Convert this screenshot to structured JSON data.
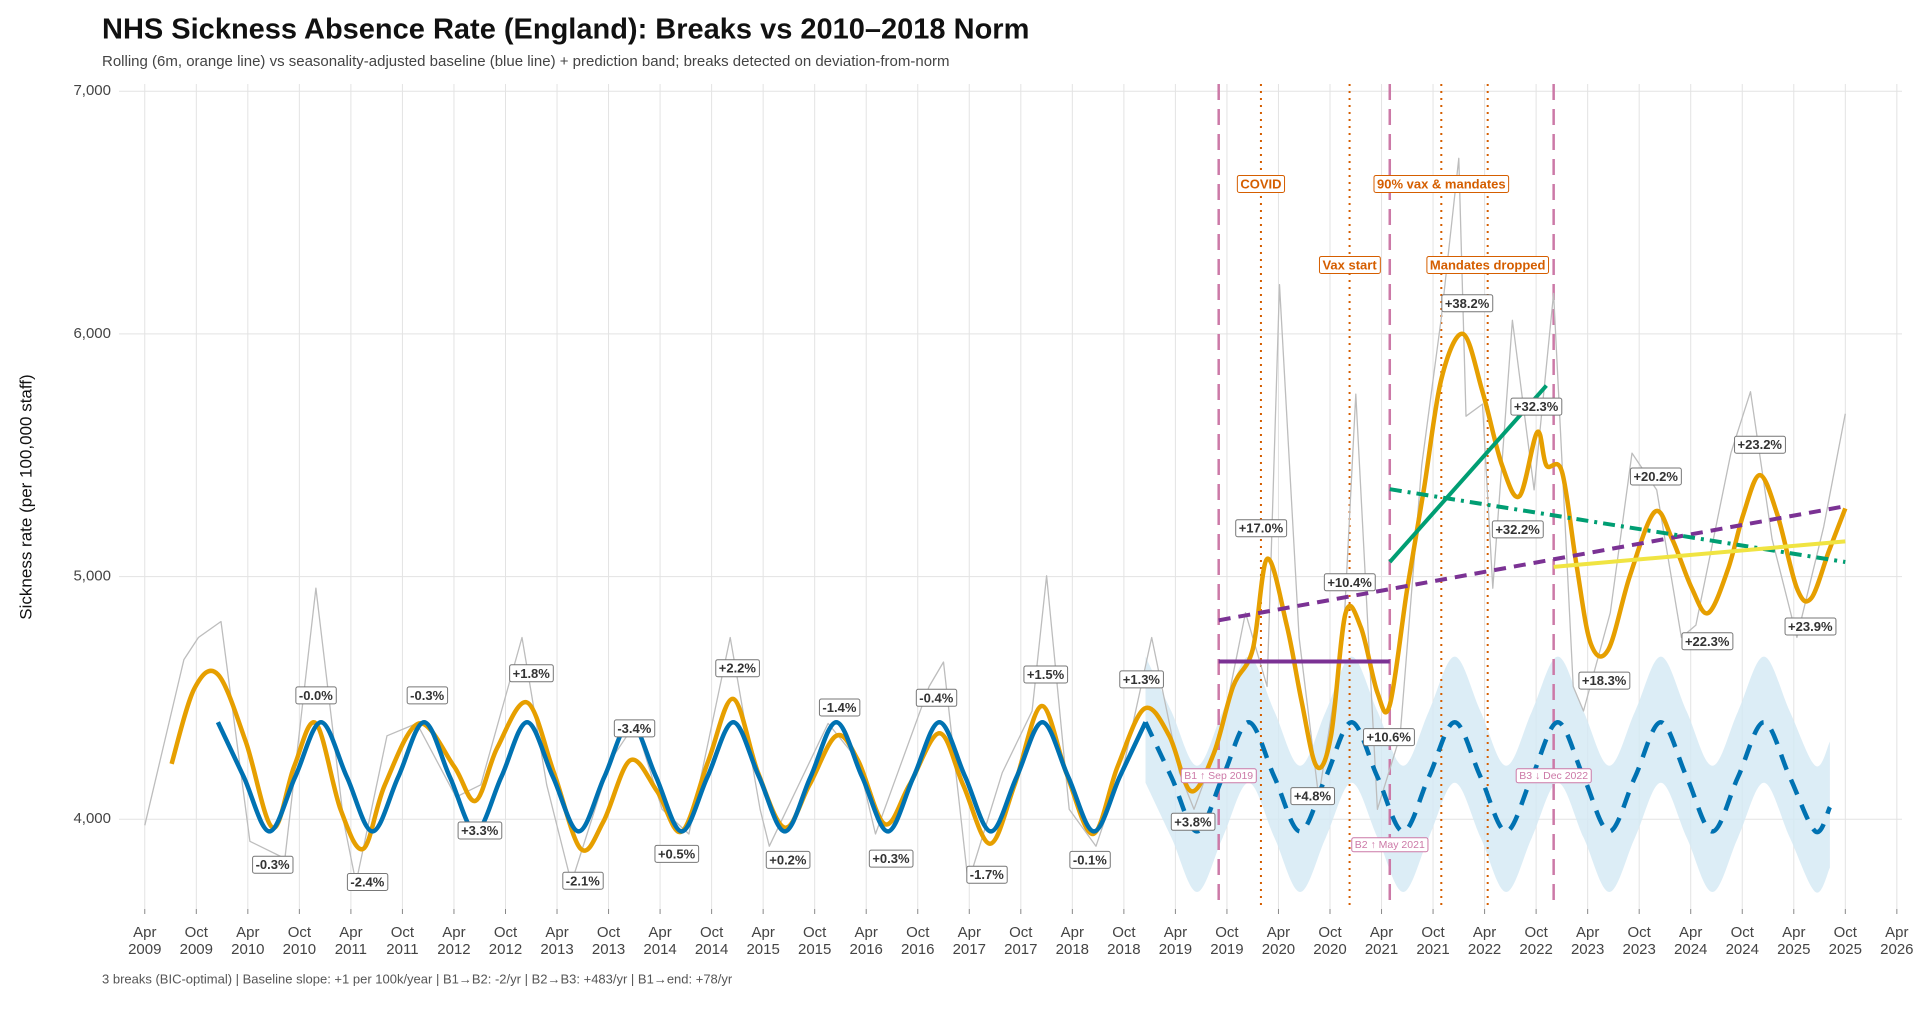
{
  "chart_data": {
    "type": "line",
    "title": "NHS Sickness Absence Rate (England): Breaks vs 2010–2018 Norm",
    "subtitle": "Rolling (6m, orange line) vs seasonality-adjusted baseline (blue line) + prediction band; breaks detected on deviation-from-norm",
    "y_label": "Sickness rate (per 100,000 staff)",
    "footer": "3 breaks (BIC-optimal) | Baseline slope: +1 per 100k/year | B1→B2: -2/yr | B2→B3: +483/yr | B1→end: +78/yr",
    "xlim": [
      2009.0,
      2026.3
    ],
    "ylim": [
      3630,
      7030
    ],
    "grid": true,
    "yticks": [
      {
        "value": 4000,
        "label": "4,000"
      },
      {
        "value": 5000,
        "label": "5,000"
      },
      {
        "value": 6000,
        "label": "6,000"
      },
      {
        "value": 7000,
        "label": "7,000"
      }
    ],
    "xticks": [
      {
        "value": 2009.25,
        "label": "Apr\n2009"
      },
      {
        "value": 2009.75,
        "label": "Oct\n2009"
      },
      {
        "value": 2010.25,
        "label": "Apr\n2010"
      },
      {
        "value": 2010.75,
        "label": "Oct\n2010"
      },
      {
        "value": 2011.25,
        "label": "Apr\n2011"
      },
      {
        "value": 2011.75,
        "label": "Oct\n2011"
      },
      {
        "value": 2012.25,
        "label": "Apr\n2012"
      },
      {
        "value": 2012.75,
        "label": "Oct\n2012"
      },
      {
        "value": 2013.25,
        "label": "Apr\n2013"
      },
      {
        "value": 2013.75,
        "label": "Oct\n2013"
      },
      {
        "value": 2014.25,
        "label": "Apr\n2014"
      },
      {
        "value": 2014.75,
        "label": "Oct\n2014"
      },
      {
        "value": 2015.25,
        "label": "Apr\n2015"
      },
      {
        "value": 2015.75,
        "label": "Oct\n2015"
      },
      {
        "value": 2016.25,
        "label": "Apr\n2016"
      },
      {
        "value": 2016.75,
        "label": "Oct\n2016"
      },
      {
        "value": 2017.25,
        "label": "Apr\n2017"
      },
      {
        "value": 2017.75,
        "label": "Oct\n2017"
      },
      {
        "value": 2018.25,
        "label": "Apr\n2018"
      },
      {
        "value": 2018.75,
        "label": "Oct\n2018"
      },
      {
        "value": 2019.25,
        "label": "Apr\n2019"
      },
      {
        "value": 2019.75,
        "label": "Oct\n2019"
      },
      {
        "value": 2020.25,
        "label": "Apr\n2020"
      },
      {
        "value": 2020.75,
        "label": "Oct\n2020"
      },
      {
        "value": 2021.25,
        "label": "Apr\n2021"
      },
      {
        "value": 2021.75,
        "label": "Oct\n2021"
      },
      {
        "value": 2022.25,
        "label": "Apr\n2022"
      },
      {
        "value": 2022.75,
        "label": "Oct\n2022"
      },
      {
        "value": 2023.25,
        "label": "Apr\n2023"
      },
      {
        "value": 2023.75,
        "label": "Oct\n2023"
      },
      {
        "value": 2024.25,
        "label": "Apr\n2024"
      },
      {
        "value": 2024.75,
        "label": "Oct\n2024"
      },
      {
        "value": 2025.25,
        "label": "Apr\n2025"
      },
      {
        "value": 2025.75,
        "label": "Oct\n2025"
      },
      {
        "value": 2026.25,
        "label": "Apr\n2026"
      }
    ],
    "band": {
      "color": "#d3e8f4",
      "x": [
        2018.96,
        2019.21,
        2019.46,
        2019.71,
        2019.96,
        2020.21,
        2020.46,
        2020.71,
        2020.96,
        2021.21,
        2021.46,
        2021.71,
        2021.96,
        2022.21,
        2022.46,
        2022.71,
        2022.96,
        2023.21,
        2023.46,
        2023.71,
        2023.96,
        2024.21,
        2024.46,
        2024.71,
        2024.96,
        2025.21,
        2025.46,
        2025.6
      ],
      "upper": [
        4670,
        4445,
        4220,
        4445,
        4670,
        4445,
        4220,
        4445,
        4670,
        4445,
        4220,
        4445,
        4670,
        4445,
        4220,
        4445,
        4670,
        4445,
        4220,
        4445,
        4670,
        4445,
        4220,
        4445,
        4670,
        4445,
        4220,
        4320
      ],
      "lower": [
        4150,
        3925,
        3700,
        3925,
        4150,
        3925,
        3700,
        3925,
        4150,
        3925,
        3700,
        3925,
        4150,
        3925,
        3700,
        3925,
        4150,
        3925,
        3700,
        3925,
        4150,
        3925,
        3700,
        3925,
        4150,
        3925,
        3700,
        3800
      ]
    },
    "series": [
      {
        "color": "#bdbdbd",
        "width": 1.3,
        "smooth": false,
        "x": [
          2009.25,
          2009.63,
          2009.77,
          2009.99,
          2010.27,
          2010.61,
          2010.91,
          2011.18,
          2011.3,
          2011.6,
          2011.89,
          2012.27,
          2012.51,
          2012.91,
          2013.15,
          2013.39,
          2013.77,
          2014.01,
          2014.27,
          2014.53,
          2014.93,
          2015.22,
          2015.31,
          2015.88,
          2016.17,
          2016.34,
          2016.86,
          2017.0,
          2017.24,
          2017.57,
          2017.86,
          2018.0,
          2018.22,
          2018.48,
          2018.76,
          2019.02,
          2019.29,
          2019.43,
          2019.69,
          2019.93,
          2020.14,
          2020.26,
          2020.45,
          2020.64,
          2020.88,
          2021.0,
          2021.21,
          2021.43,
          2021.64,
          2021.83,
          2022.0,
          2022.07,
          2022.23,
          2022.33,
          2022.52,
          2022.73,
          2022.92,
          2023.11,
          2023.21,
          2023.47,
          2023.68,
          2023.92,
          2024.16,
          2024.3,
          2024.64,
          2024.83,
          2025.04,
          2025.28,
          2025.54,
          2025.75
        ],
        "values": [
          3975,
          4658,
          4749,
          4815,
          3909,
          3838,
          4952,
          3990,
          3737,
          4344,
          4395,
          4091,
          4142,
          4749,
          4142,
          3737,
          4243,
          4395,
          4041,
          3939,
          4749,
          4041,
          3889,
          4395,
          4243,
          3939,
          4547,
          4648,
          3737,
          4192,
          4446,
          5003,
          4041,
          3889,
          4243,
          4749,
          4192,
          4041,
          4344,
          4851,
          4547,
          6203,
          4749,
          4091,
          4749,
          5752,
          4041,
          4344,
          5458,
          6066,
          6724,
          5661,
          5711,
          4952,
          6056,
          5357,
          6167,
          4547,
          4446,
          4851,
          5509,
          5357,
          4749,
          4800,
          5509,
          5762,
          5154,
          4749,
          5205,
          5671
        ]
      },
      {
        "color": "#E69F00",
        "width": 4.5,
        "smooth": true,
        "x": [
          2009.51,
          2009.73,
          2009.96,
          2010.23,
          2010.49,
          2010.7,
          2010.91,
          2011.15,
          2011.37,
          2011.58,
          2011.91,
          2012.25,
          2012.46,
          2012.67,
          2012.96,
          2013.22,
          2013.48,
          2013.7,
          2013.96,
          2014.22,
          2014.46,
          2014.72,
          2014.96,
          2015.2,
          2015.46,
          2015.7,
          2015.96,
          2016.17,
          2016.43,
          2016.67,
          2016.96,
          2017.19,
          2017.45,
          2017.69,
          2017.95,
          2018.19,
          2018.45,
          2018.69,
          2018.95,
          2019.19,
          2019.4,
          2019.62,
          2019.81,
          2020.0,
          2020.14,
          2020.33,
          2020.47,
          2020.62,
          2020.76,
          2020.9,
          2021.05,
          2021.21,
          2021.33,
          2021.5,
          2021.66,
          2021.83,
          2022.04,
          2022.23,
          2022.42,
          2022.59,
          2022.76,
          2022.85,
          2023.0,
          2023.14,
          2023.28,
          2023.45,
          2023.66,
          2023.9,
          2024.07,
          2024.26,
          2024.42,
          2024.61,
          2024.76,
          2024.92,
          2025.09,
          2025.28,
          2025.42,
          2025.59,
          2025.75
        ],
        "values": [
          4228,
          4537,
          4597,
          4319,
          3965,
          4218,
          4395,
          4040,
          3878,
          4142,
          4395,
          4218,
          4076,
          4294,
          4481,
          4192,
          3878,
          3990,
          4243,
          4116,
          3949,
          4243,
          4496,
          4192,
          3965,
          4142,
          4344,
          4243,
          3980,
          4142,
          4354,
          4142,
          3899,
          4142,
          4466,
          4192,
          3939,
          4218,
          4456,
          4344,
          4116,
          4268,
          4547,
          4699,
          5073,
          4800,
          4496,
          4218,
          4344,
          4848,
          4790,
          4522,
          4471,
          4952,
          5357,
          5813,
          6000,
          5762,
          5458,
          5332,
          5595,
          5458,
          5433,
          5053,
          4724,
          4699,
          5003,
          5266,
          5154,
          4952,
          4850,
          5028,
          5256,
          5418,
          5256,
          4952,
          4911,
          5104,
          5281
        ]
      },
      {
        "color": "#0072B2",
        "width": 4.5,
        "smooth": true,
        "x": [
          2009.96,
          2010.21,
          2010.46,
          2010.71,
          2010.96,
          2011.21,
          2011.46,
          2011.71,
          2011.96,
          2012.21,
          2012.46,
          2012.71,
          2012.96,
          2013.21,
          2013.46,
          2013.71,
          2013.96,
          2014.21,
          2014.46,
          2014.71,
          2014.96,
          2015.21,
          2015.46,
          2015.71,
          2015.96,
          2016.21,
          2016.46,
          2016.71,
          2016.96,
          2017.21,
          2017.46,
          2017.71,
          2017.96,
          2018.21,
          2018.46,
          2018.71,
          2018.96
        ],
        "values": [
          4400,
          4175,
          3950,
          4175,
          4400,
          4175,
          3950,
          4175,
          4400,
          4175,
          3950,
          4175,
          4400,
          4175,
          3950,
          4175,
          4400,
          4175,
          3950,
          4175,
          4400,
          4175,
          3950,
          4175,
          4400,
          4175,
          3950,
          4175,
          4400,
          4175,
          3950,
          4175,
          4400,
          4175,
          3950,
          4175,
          4400
        ]
      },
      {
        "color": "#0072B2",
        "width": 4.5,
        "smooth": true,
        "dash": "16 11",
        "x": [
          2018.96,
          2019.21,
          2019.46,
          2019.71,
          2019.96,
          2020.21,
          2020.46,
          2020.71,
          2020.96,
          2021.21,
          2021.46,
          2021.71,
          2021.96,
          2022.21,
          2022.46,
          2022.71,
          2022.96,
          2023.21,
          2023.46,
          2023.71,
          2023.96,
          2024.21,
          2024.46,
          2024.71,
          2024.96,
          2025.21,
          2025.46,
          2025.6
        ],
        "values": [
          4400,
          4175,
          3950,
          4175,
          4400,
          4175,
          3950,
          4175,
          4400,
          4175,
          3950,
          4175,
          4400,
          4175,
          3950,
          4175,
          4400,
          4175,
          3950,
          4175,
          4400,
          4175,
          3950,
          4175,
          4400,
          4175,
          3950,
          4050
        ]
      }
    ],
    "trends": [
      {
        "color": "#7b3294",
        "dash": "",
        "x": [
          2019.67,
          2021.33
        ],
        "values": [
          4650,
          4650
        ]
      },
      {
        "color": "#7b3294",
        "dash": "12 8",
        "x": [
          2019.67,
          2025.75
        ],
        "values": [
          4820,
          5290
        ]
      },
      {
        "color": "#009E73",
        "dash": "",
        "x": [
          2021.33,
          2022.85
        ],
        "values": [
          5060,
          5787
        ]
      },
      {
        "color": "#009E73",
        "dash": "12 6 3 6",
        "x": [
          2021.33,
          2025.75
        ],
        "values": [
          5360,
          5060
        ]
      },
      {
        "color": "#F0E442",
        "dash": "",
        "x": [
          2022.92,
          2025.75
        ],
        "values": [
          5040,
          5145
        ]
      }
    ],
    "breaks": [
      {
        "x": 2019.67,
        "label": "B1 ↑  Sep 2019"
      },
      {
        "x": 2021.33,
        "label": "B2 ↑  May 2021"
      },
      {
        "x": 2022.92,
        "label": "B3 ↓  Dec 2022"
      }
    ],
    "break_color": "#CC79A7",
    "events": [
      {
        "x": 2020.08,
        "label": "COVID"
      },
      {
        "x": 2020.94,
        "label": "Vax start"
      },
      {
        "x": 2021.83,
        "label": "90% vax & mandates"
      },
      {
        "x": 2022.28,
        "label": "Mandates dropped"
      }
    ],
    "event_color": "#D55E00",
    "annotations": [
      {
        "x": 2010.91,
        "y": 4506,
        "text": "-0.0%"
      },
      {
        "x": 2010.49,
        "y": 3808,
        "text": "-0.3%"
      },
      {
        "x": 2011.99,
        "y": 4506,
        "text": "-0.3%"
      },
      {
        "x": 2011.41,
        "y": 3737,
        "text": "-2.4%"
      },
      {
        "x": 2013.0,
        "y": 4597,
        "text": "+1.8%"
      },
      {
        "x": 2012.5,
        "y": 3949,
        "text": "+3.3%"
      },
      {
        "x": 2014.0,
        "y": 4370,
        "text": "-3.4%"
      },
      {
        "x": 2013.5,
        "y": 3742,
        "text": "-2.1%"
      },
      {
        "x": 2015.0,
        "y": 4618,
        "text": "+2.2%"
      },
      {
        "x": 2014.41,
        "y": 3853,
        "text": "+0.5%"
      },
      {
        "x": 2015.99,
        "y": 4456,
        "text": "-1.4%"
      },
      {
        "x": 2015.49,
        "y": 3828,
        "text": "+0.2%"
      },
      {
        "x": 2016.93,
        "y": 4496,
        "text": "-0.4%"
      },
      {
        "x": 2016.49,
        "y": 3833,
        "text": "+0.3%"
      },
      {
        "x": 2017.99,
        "y": 4592,
        "text": "+1.5%"
      },
      {
        "x": 2017.42,
        "y": 3767,
        "text": "-1.7%"
      },
      {
        "x": 2018.92,
        "y": 4572,
        "text": "+1.3%"
      },
      {
        "x": 2018.42,
        "y": 3828,
        "text": "-0.1%"
      },
      {
        "x": 2020.08,
        "y": 5195,
        "text": "+17.0%"
      },
      {
        "x": 2019.42,
        "y": 3985,
        "text": "+3.8%"
      },
      {
        "x": 2020.58,
        "y": 4091,
        "text": "+4.8%"
      },
      {
        "x": 2020.94,
        "y": 4972,
        "text": "+10.4%"
      },
      {
        "x": 2021.32,
        "y": 4334,
        "text": "+10.6%"
      },
      {
        "x": 2022.08,
        "y": 6122,
        "text": "+38.2%"
      },
      {
        "x": 2022.75,
        "y": 5696,
        "text": "+32.3%"
      },
      {
        "x": 2022.57,
        "y": 5190,
        "text": "+32.2%"
      },
      {
        "x": 2023.41,
        "y": 4567,
        "text": "+18.3%"
      },
      {
        "x": 2023.91,
        "y": 5408,
        "text": "+20.2%"
      },
      {
        "x": 2024.41,
        "y": 4729,
        "text": "+22.3%"
      },
      {
        "x": 2024.92,
        "y": 5539,
        "text": "+23.2%"
      },
      {
        "x": 2025.41,
        "y": 4790,
        "text": "+23.9%"
      }
    ]
  }
}
